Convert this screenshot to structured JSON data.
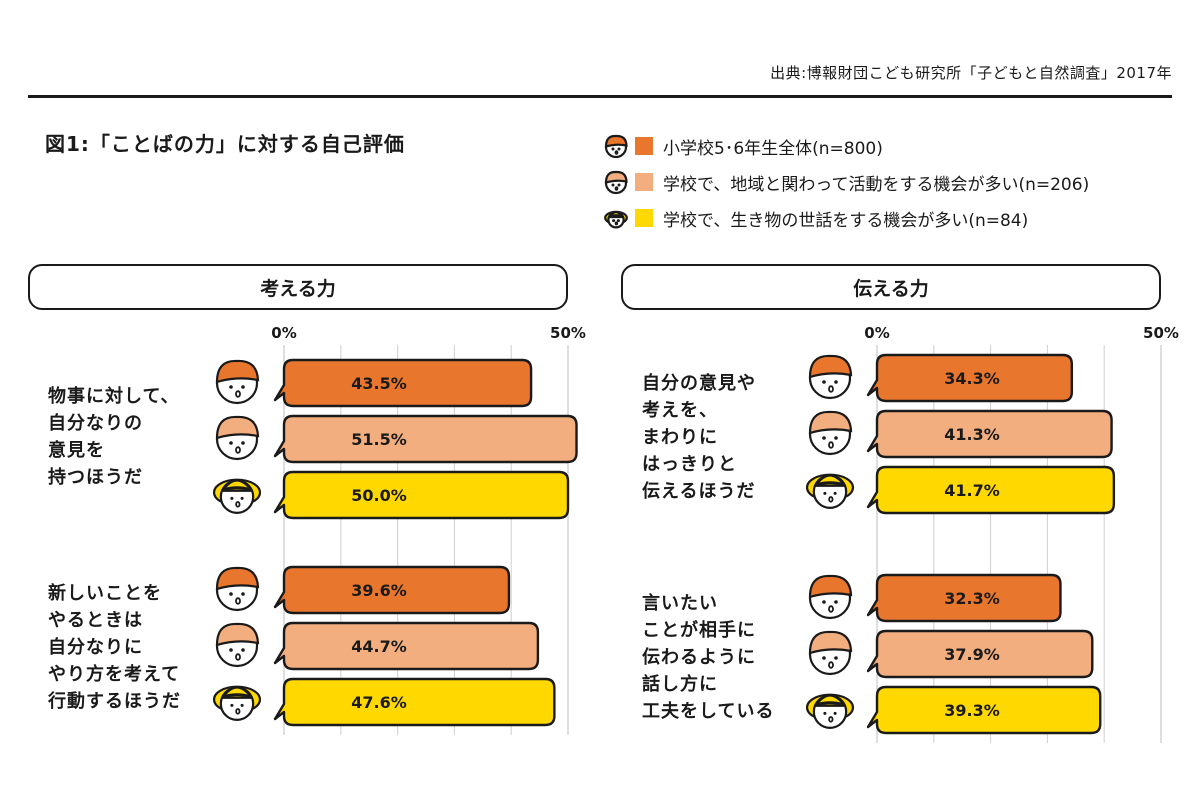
{
  "source": "出典:博報財団こども研究所「子どもと自然調査」2017年",
  "figure_title": "図1:「ことばの力」に対する自己評価",
  "colors": {
    "orange": "#E8762D",
    "peach": "#F2AE7E",
    "yellow": "#FFD800",
    "ink": "#1a1a1a"
  },
  "legend": [
    {
      "label": "小学校5･6年生全体(n=800)",
      "color": "#E8762D",
      "icon": "child-cap-icon"
    },
    {
      "label": "学校で、地域と関わって活動をする機会が多い(n=206)",
      "color": "#F2AE7E",
      "icon": "child-cap-icon"
    },
    {
      "label": "学校で、生き物の世話をする機会が多い(n=84)",
      "color": "#FFD800",
      "icon": "child-hat-icon"
    }
  ],
  "panels": [
    {
      "header": "考える力",
      "tick_start": "0%",
      "tick_end": "50%"
    },
    {
      "header": "伝える力",
      "tick_start": "0%",
      "tick_end": "50%"
    }
  ],
  "questions": [
    "物事に対して、\n自分なりの\n意見を\n持つほうだ",
    "新しいことを\nやるときは\n自分なりに\nやり方を考えて\n行動するほうだ",
    "自分の意見や\n考えを、\nまわりに\nはっきりと\n伝えるほうだ",
    "言いたい\nことが相手に\n伝わるように\n話し方に\n工夫をしている"
  ],
  "chart_data": [
    {
      "type": "bar",
      "title": "考える力",
      "orientation": "horizontal",
      "xlim": [
        0,
        50
      ],
      "categories": [
        "物事に対して、自分なりの意見を持つほうだ",
        "新しいことをやるときは自分なりにやり方を考えて行動するほうだ"
      ],
      "series": [
        {
          "name": "小学校5･6年生全体(n=800)",
          "values": [
            43.5,
            39.6
          ],
          "labels": [
            "43.5%",
            "39.6%"
          ]
        },
        {
          "name": "学校で、地域と関わって活動をする機会が多い(n=206)",
          "values": [
            51.5,
            44.7
          ],
          "labels": [
            "51.5%",
            "44.7%"
          ]
        },
        {
          "name": "学校で、生き物の世話をする機会が多い(n=84)",
          "values": [
            50.0,
            47.6
          ],
          "labels": [
            "50.0%",
            "47.6%"
          ]
        }
      ]
    },
    {
      "type": "bar",
      "title": "伝える力",
      "orientation": "horizontal",
      "xlim": [
        0,
        50
      ],
      "categories": [
        "自分の意見や考えを、まわりにはっきりと伝えるほうだ",
        "言いたいことが相手に伝わるように話し方に工夫をしている"
      ],
      "series": [
        {
          "name": "小学校5･6年生全体(n=800)",
          "values": [
            34.3,
            32.3
          ],
          "labels": [
            "34.3%",
            "32.3%"
          ]
        },
        {
          "name": "学校で、地域と関わって活動をする機会が多い(n=206)",
          "values": [
            41.3,
            37.9
          ],
          "labels": [
            "41.3%",
            "37.9%"
          ]
        },
        {
          "name": "学校で、生き物の世話をする機会が多い(n=84)",
          "values": [
            41.7,
            39.3
          ],
          "labels": [
            "41.7%",
            "39.3%"
          ]
        }
      ]
    }
  ]
}
